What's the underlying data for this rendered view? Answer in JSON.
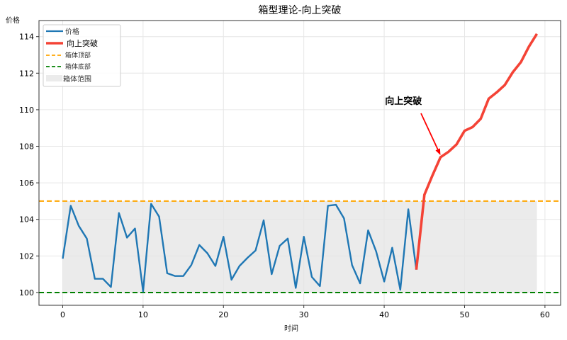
{
  "chart_data": {
    "type": "line",
    "title": "箱型理论-向上突破",
    "xlabel": "时间",
    "ylabel": "价格",
    "xlim": [
      -2.95,
      61.95
    ],
    "ylim": [
      99.3,
      114.88
    ],
    "xticks": [
      0,
      10,
      20,
      30,
      40,
      50,
      60
    ],
    "yticks": [
      100,
      102,
      104,
      106,
      108,
      110,
      112,
      114
    ],
    "grid": true,
    "legend_position": "upper left",
    "series": [
      {
        "name": "价格",
        "color": "#1f77b4",
        "style": "solid",
        "x": [
          0,
          1,
          2,
          3,
          4,
          5,
          6,
          7,
          8,
          9,
          10,
          11,
          12,
          13,
          14,
          15,
          16,
          17,
          18,
          19,
          20,
          21,
          22,
          23,
          24,
          25,
          26,
          27,
          28,
          29,
          30,
          31,
          32,
          33,
          34,
          35,
          36,
          37,
          38,
          39,
          40,
          41,
          42,
          43,
          44
        ],
        "values": [
          101.85,
          104.75,
          103.65,
          102.95,
          100.75,
          100.75,
          100.3,
          104.35,
          103.0,
          103.5,
          100.05,
          104.85,
          104.15,
          101.05,
          100.9,
          100.9,
          101.5,
          102.6,
          102.15,
          101.45,
          103.05,
          100.7,
          101.45,
          101.9,
          102.3,
          103.95,
          101.0,
          102.55,
          102.95,
          100.25,
          103.05,
          100.85,
          100.35,
          104.75,
          104.8,
          104.05,
          101.5,
          100.5,
          103.4,
          102.25,
          100.6,
          102.45,
          100.15,
          104.55,
          101.25
        ]
      },
      {
        "name": "向上突破",
        "color": "#f44336",
        "style": "solid",
        "x": [
          44,
          45,
          46,
          47,
          48,
          49,
          50,
          51,
          52,
          53,
          54,
          55,
          56,
          57,
          58,
          59
        ],
        "values": [
          101.25,
          105.35,
          106.4,
          107.4,
          107.7,
          108.1,
          108.85,
          109.05,
          109.5,
          110.6,
          110.95,
          111.35,
          112.05,
          112.6,
          113.45,
          114.15
        ]
      },
      {
        "name": "箱体顶部",
        "color": "#ffa500",
        "style": "dashed",
        "y": 105
      },
      {
        "name": "箱体底部",
        "color": "#008000",
        "style": "dashed",
        "y": 100
      },
      {
        "name": "箱体范围",
        "color": "#d3d3d3",
        "style": "fill",
        "x_range": [
          0,
          59
        ],
        "y_range": [
          100,
          105
        ]
      }
    ],
    "annotations": [
      {
        "text": "向上突破",
        "text_xy": [
          40.1,
          110.3
        ],
        "arrow_to": [
          47,
          107.4
        ],
        "color": "#ff0000"
      }
    ]
  }
}
